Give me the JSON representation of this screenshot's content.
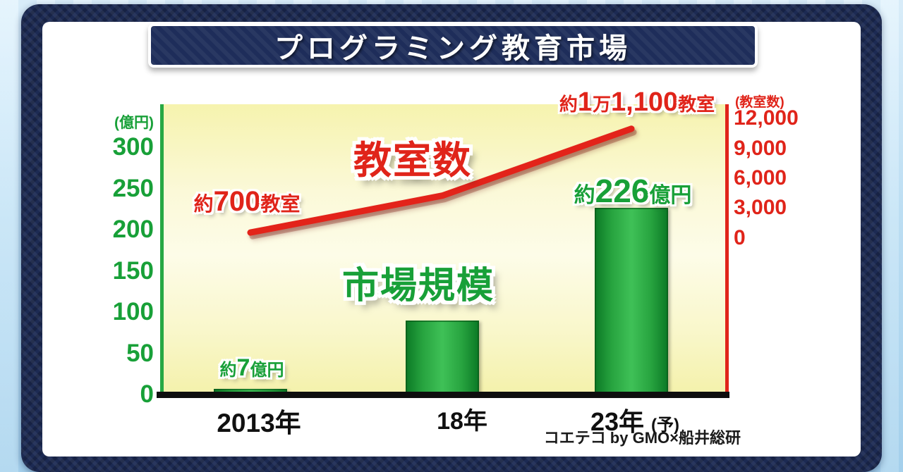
{
  "title": "プログラミング教育市場",
  "chart_data": {
    "type": "combo",
    "title": "プログラミング教育市場",
    "categories": [
      "2013年",
      "18年",
      "23年(予)"
    ],
    "series": [
      {
        "name": "市場規模",
        "type": "bar",
        "axis": "left",
        "unit": "億円",
        "color": "#1fa03c",
        "values": [
          7,
          90,
          226
        ]
      },
      {
        "name": "教室数",
        "type": "line",
        "axis": "right",
        "unit": "教室",
        "color": "#e0241a",
        "values": [
          700,
          4400,
          11100
        ]
      }
    ],
    "left_axis": {
      "unit_label": "(億円)",
      "ticks": [
        300,
        250,
        200,
        150,
        100,
        50,
        0
      ],
      "ticks_display": [
        "300",
        "250",
        "200",
        "150",
        "100",
        "50",
        "0"
      ],
      "color": "#18a038"
    },
    "right_axis": {
      "unit_label": "(教室数)",
      "ticks": [
        12000,
        9000,
        6000,
        3000,
        0
      ],
      "ticks_display": [
        "12,000",
        "9,000",
        "6,000",
        "3,000",
        "0"
      ],
      "color": "#e0241a"
    },
    "x_labels": [
      "2013年",
      "18年",
      "23年"
    ],
    "x_suffix_3": "(予)",
    "series_label_line": "教室数",
    "series_label_bar": "市場規模",
    "annotations": {
      "line_start": {
        "prefix": "約",
        "num": "700",
        "unit": "教室"
      },
      "line_end": {
        "prefix": "約",
        "man_num": "1",
        "man": "万",
        "num": "1,100",
        "unit": "教室"
      },
      "bar_first": {
        "prefix": "約",
        "num": "7",
        "unit": "億円"
      },
      "bar_last": {
        "prefix": "約",
        "num": "226",
        "unit": "億円"
      }
    },
    "source": "コエテコ by GMO×船井総研",
    "grid": false,
    "legend_position": "none"
  },
  "colors": {
    "green": "#18a038",
    "red": "#e0241a",
    "navy": "#1d2b56",
    "plot_bg": "#faf8cf"
  }
}
